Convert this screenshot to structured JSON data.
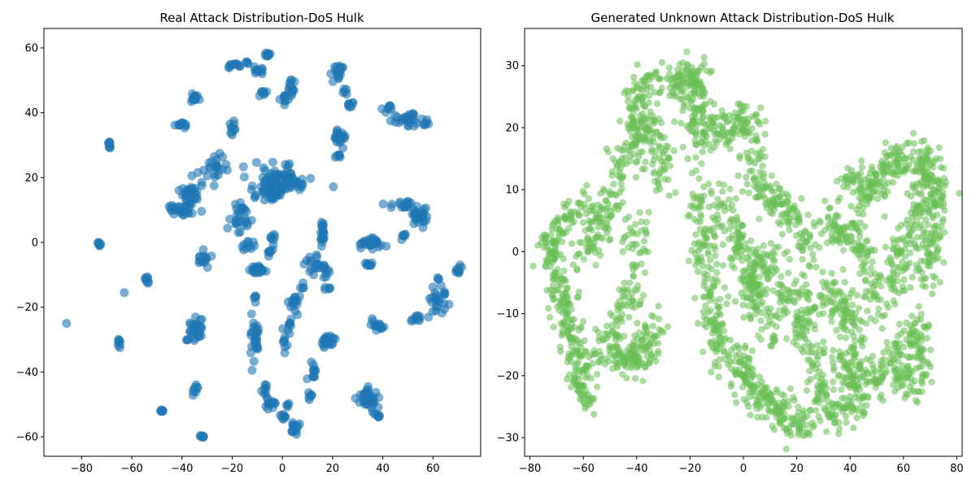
{
  "chart_data": [
    {
      "type": "scatter",
      "title": "Real Attack Distribution-DoS Hulk",
      "xlabel": "",
      "ylabel": "",
      "xlim": [
        -95,
        79
      ],
      "ylim": [
        -66,
        66
      ],
      "xticks": [
        -80,
        -60,
        -40,
        -20,
        0,
        20,
        40,
        60
      ],
      "yticks": [
        -60,
        -40,
        -20,
        0,
        20,
        40,
        60
      ],
      "grid": false,
      "color": "#1f77b4",
      "opacity": 0.6,
      "clusters": [
        {
          "cx": -73,
          "cy": -0.5,
          "rx": 0.6,
          "ry": 0.5,
          "n": 8
        },
        {
          "cx": -69,
          "cy": 30,
          "rx": 0.4,
          "ry": 1.2,
          "n": 8
        },
        {
          "cx": -86,
          "cy": -25,
          "rx": 0,
          "ry": 0,
          "n": 1
        },
        {
          "cx": -63,
          "cy": -15.5,
          "rx": 0,
          "ry": 0,
          "n": 1
        },
        {
          "cx": -65,
          "cy": -31,
          "rx": 0.5,
          "ry": 1.5,
          "n": 8
        },
        {
          "cx": -54,
          "cy": -11.5,
          "rx": 0.5,
          "ry": 1.5,
          "n": 8
        },
        {
          "cx": -48,
          "cy": -52,
          "rx": 0.5,
          "ry": 0.4,
          "n": 8
        },
        {
          "cx": -32,
          "cy": -60,
          "rx": 1.0,
          "ry": 0.4,
          "n": 8
        },
        {
          "cx": -35,
          "cy": 44.5,
          "rx": 1.2,
          "ry": 1.5,
          "n": 14
        },
        {
          "cx": -40,
          "cy": 36.5,
          "rx": 2,
          "ry": 0.8,
          "n": 12
        },
        {
          "cx": -37,
          "cy": 14,
          "rx": 4,
          "ry": 4,
          "n": 45
        },
        {
          "cx": -42,
          "cy": 10,
          "rx": 3,
          "ry": 2,
          "n": 20
        },
        {
          "cx": -31,
          "cy": -5,
          "rx": 2,
          "ry": 2.5,
          "n": 15
        },
        {
          "cx": -34,
          "cy": -27,
          "rx": 3,
          "ry": 3,
          "n": 28
        },
        {
          "cx": -35,
          "cy": -46,
          "rx": 1,
          "ry": 1.5,
          "n": 8
        },
        {
          "cx": -38,
          "cy": -30,
          "rx": 0.5,
          "ry": 0.5,
          "n": 3
        },
        {
          "cx": -20,
          "cy": 54.5,
          "rx": 3,
          "ry": 0.8,
          "n": 12
        },
        {
          "cx": -14,
          "cy": 55.5,
          "rx": 1,
          "ry": 0.5,
          "n": 4
        },
        {
          "cx": -20,
          "cy": 35,
          "rx": 1,
          "ry": 1.5,
          "n": 10
        },
        {
          "cx": -27,
          "cy": 23,
          "rx": 6,
          "ry": 3.5,
          "n": 24
        },
        {
          "cx": -17,
          "cy": 8,
          "rx": 4,
          "ry": 4,
          "n": 28
        },
        {
          "cx": -14,
          "cy": -1,
          "rx": 2,
          "ry": 1.5,
          "n": 10
        },
        {
          "cx": -10,
          "cy": -8.5,
          "rx": 3,
          "ry": 1.5,
          "n": 22
        },
        {
          "cx": -11,
          "cy": -17,
          "rx": 1,
          "ry": 1,
          "n": 5
        },
        {
          "cx": -11,
          "cy": -30,
          "rx": 1.5,
          "ry": 8,
          "n": 28
        },
        {
          "cx": -7,
          "cy": -45,
          "rx": 1,
          "ry": 2.5,
          "n": 8
        },
        {
          "cx": -5,
          "cy": -49.5,
          "rx": 2,
          "ry": 1.5,
          "n": 14
        },
        {
          "cx": -10,
          "cy": 53,
          "rx": 2,
          "ry": 1.5,
          "n": 10
        },
        {
          "cx": -6,
          "cy": 58,
          "rx": 1.2,
          "ry": 1,
          "n": 10
        },
        {
          "cx": -8,
          "cy": 46,
          "rx": 1.5,
          "ry": 1.5,
          "n": 7
        },
        {
          "cx": 1,
          "cy": 44,
          "rx": 2,
          "ry": 1.5,
          "n": 10
        },
        {
          "cx": 4,
          "cy": 48,
          "rx": 2,
          "ry": 3,
          "n": 14
        },
        {
          "cx": -2,
          "cy": 19,
          "rx": 10,
          "ry": 4,
          "n": 90
        },
        {
          "cx": -5,
          "cy": 15,
          "rx": 5,
          "ry": 2,
          "n": 30
        },
        {
          "cx": -4,
          "cy": 1.5,
          "rx": 1,
          "ry": 1.5,
          "n": 7
        },
        {
          "cx": -5,
          "cy": -3,
          "rx": 1,
          "ry": 1.5,
          "n": 7
        },
        {
          "cx": 5,
          "cy": -19,
          "rx": 2,
          "ry": 3,
          "n": 16
        },
        {
          "cx": 3,
          "cy": -25,
          "rx": 1,
          "ry": 1,
          "n": 6
        },
        {
          "cx": 1,
          "cy": -30,
          "rx": 1.5,
          "ry": 3,
          "n": 10
        },
        {
          "cx": 1,
          "cy": -54,
          "rx": 1.5,
          "ry": 1,
          "n": 8
        },
        {
          "cx": 5,
          "cy": -57,
          "rx": 2,
          "ry": 2.5,
          "n": 14
        },
        {
          "cx": 2,
          "cy": -49.5,
          "rx": 1,
          "ry": 1,
          "n": 4
        },
        {
          "cx": 8,
          "cy": -14,
          "rx": 0.8,
          "ry": 1,
          "n": 4
        },
        {
          "cx": 13,
          "cy": -7,
          "rx": 3,
          "ry": 3,
          "n": 18
        },
        {
          "cx": 16,
          "cy": 3,
          "rx": 0.8,
          "ry": 4,
          "n": 18
        },
        {
          "cx": 17,
          "cy": -9,
          "rx": 1.5,
          "ry": 5,
          "n": 12
        },
        {
          "cx": 19,
          "cy": -14,
          "rx": 0.5,
          "ry": 0.5,
          "n": 3
        },
        {
          "cx": 18,
          "cy": -30.5,
          "rx": 3,
          "ry": 1.5,
          "n": 28
        },
        {
          "cx": 12,
          "cy": -40,
          "rx": 1.5,
          "ry": 3,
          "n": 12
        },
        {
          "cx": 11,
          "cy": -47,
          "rx": 1,
          "ry": 1,
          "n": 6
        },
        {
          "cx": 22,
          "cy": 53,
          "rx": 2,
          "ry": 2,
          "n": 22
        },
        {
          "cx": 25,
          "cy": 46.5,
          "rx": 1,
          "ry": 1,
          "n": 5
        },
        {
          "cx": 27,
          "cy": 42.5,
          "rx": 1.5,
          "ry": 1,
          "n": 8
        },
        {
          "cx": 23,
          "cy": 32.5,
          "rx": 2,
          "ry": 2,
          "n": 20
        },
        {
          "cx": 22,
          "cy": 26.5,
          "rx": 1,
          "ry": 0.6,
          "n": 6
        },
        {
          "cx": 35,
          "cy": -0.5,
          "rx": 4,
          "ry": 1.5,
          "n": 26
        },
        {
          "cx": 34,
          "cy": -7,
          "rx": 1.5,
          "ry": 1,
          "n": 9
        },
        {
          "cx": 38,
          "cy": -25.5,
          "rx": 3,
          "ry": 1.5,
          "n": 18
        },
        {
          "cx": 35,
          "cy": -48,
          "rx": 4,
          "ry": 3,
          "n": 34
        },
        {
          "cx": 38,
          "cy": -53.5,
          "rx": 2,
          "ry": 1,
          "n": 8
        },
        {
          "cx": 42,
          "cy": 41.5,
          "rx": 1.5,
          "ry": 0.8,
          "n": 8
        },
        {
          "cx": 50,
          "cy": 38,
          "rx": 4,
          "ry": 2.5,
          "n": 30
        },
        {
          "cx": 57,
          "cy": 36.5,
          "rx": 1,
          "ry": 1,
          "n": 6
        },
        {
          "cx": 47,
          "cy": 12,
          "rx": 4,
          "ry": 1.5,
          "n": 16
        },
        {
          "cx": 55,
          "cy": 7.5,
          "rx": 3,
          "ry": 3,
          "n": 26
        },
        {
          "cx": 48.5,
          "cy": 2,
          "rx": 1,
          "ry": 1,
          "n": 6
        },
        {
          "cx": 54,
          "cy": -23.5,
          "rx": 2,
          "ry": 1,
          "n": 10
        },
        {
          "cx": 62,
          "cy": -19,
          "rx": 4,
          "ry": 4,
          "n": 26
        },
        {
          "cx": 70,
          "cy": -8.5,
          "rx": 1.2,
          "ry": 1.5,
          "n": 10
        },
        {
          "cx": 62,
          "cy": -11.5,
          "rx": 0.5,
          "ry": 0.5,
          "n": 3
        }
      ]
    },
    {
      "type": "scatter",
      "title": "Generated Unknown Attack Distribution-DoS Hulk",
      "xlabel": "",
      "ylabel": "",
      "xlim": [
        -82,
        82
      ],
      "ylim": [
        -33,
        36
      ],
      "xticks": [
        -80,
        -60,
        -40,
        -20,
        0,
        20,
        40,
        60,
        80
      ],
      "yticks": [
        -30,
        -20,
        -10,
        0,
        10,
        20,
        30
      ],
      "grid": false,
      "color": "#6abf56",
      "opacity": 0.55,
      "strokes": [
        {
          "n": 220,
          "spread": 1.6,
          "path": [
            [
              -73,
              2
            ],
            [
              -69,
              -6
            ],
            [
              -65,
              -13
            ],
            [
              -62,
              -20
            ],
            [
              -58,
              -24
            ]
          ]
        },
        {
          "n": 80,
          "spread": 1.4,
          "path": [
            [
              -73,
              0
            ],
            [
              -65,
              6
            ],
            [
              -57,
              8
            ]
          ]
        },
        {
          "n": 150,
          "spread": 1.5,
          "path": [
            [
              -62,
              -2
            ],
            [
              -55,
              2
            ],
            [
              -50,
              8
            ],
            [
              -46,
              14
            ],
            [
              -40,
              22
            ]
          ]
        },
        {
          "n": 130,
          "spread": 1.6,
          "path": [
            [
              -57,
              -18
            ],
            [
              -50,
              -14
            ],
            [
              -44,
              -10
            ],
            [
              -42,
              -3
            ],
            [
              -39,
              5
            ]
          ]
        },
        {
          "n": 130,
          "spread": 1.3,
          "path": [
            [
              -48,
              -17
            ],
            [
              -42,
              -17
            ],
            [
              -36,
              -17
            ],
            [
              -33,
              -12
            ]
          ]
        },
        {
          "n": 130,
          "spread": 1.6,
          "path": [
            [
              -44,
              20
            ],
            [
              -40,
              26
            ],
            [
              -33,
              28
            ],
            [
              -27,
              26
            ],
            [
              -20,
              28
            ],
            [
              -15,
              26
            ]
          ]
        },
        {
          "n": 100,
          "spread": 1.6,
          "path": [
            [
              -38,
              14
            ],
            [
              -36,
              22
            ],
            [
              -30,
              15
            ],
            [
              -28,
              10
            ]
          ]
        },
        {
          "n": 90,
          "spread": 1.5,
          "path": [
            [
              -23,
              30
            ],
            [
              -20,
              27
            ],
            [
              -18,
              21
            ],
            [
              -17,
              15
            ]
          ]
        },
        {
          "n": 180,
          "spread": 1.7,
          "path": [
            [
              -18,
              10
            ],
            [
              -16,
              3
            ],
            [
              -14,
              -3
            ],
            [
              -12,
              -10
            ],
            [
              -10,
              -15
            ],
            [
              -5,
              -18
            ]
          ]
        },
        {
          "n": 110,
          "spread": 1.5,
          "path": [
            [
              -16,
              20
            ],
            [
              -10,
              20
            ],
            [
              -5,
              20
            ],
            [
              0,
              21
            ],
            [
              7,
              19
            ]
          ]
        },
        {
          "n": 160,
          "spread": 1.6,
          "path": [
            [
              -8,
              9
            ],
            [
              -3,
              3
            ],
            [
              2,
              -2
            ],
            [
              7,
              -8
            ],
            [
              10,
              -14
            ]
          ]
        },
        {
          "n": 200,
          "spread": 1.7,
          "path": [
            [
              -2,
              -17
            ],
            [
              3,
              -22
            ],
            [
              10,
              -24
            ],
            [
              17,
              -27
            ],
            [
              24,
              -28
            ]
          ]
        },
        {
          "n": 160,
          "spread": 1.6,
          "path": [
            [
              2,
              19
            ],
            [
              5,
              13
            ],
            [
              8,
              8
            ],
            [
              14,
              8
            ],
            [
              17,
              6
            ],
            [
              22,
              2
            ],
            [
              25,
              -2
            ]
          ]
        },
        {
          "n": 120,
          "spread": 1.5,
          "path": [
            [
              2,
              -10
            ],
            [
              5,
              -3
            ],
            [
              10,
              -1
            ],
            [
              14,
              -5
            ],
            [
              18,
              -9
            ],
            [
              22,
              -13
            ]
          ]
        },
        {
          "n": 160,
          "spread": 1.6,
          "path": [
            [
              20,
              -6
            ],
            [
              24,
              -10
            ],
            [
              26,
              -16
            ],
            [
              28,
              -22
            ],
            [
              33,
              -25
            ],
            [
              40,
              -26
            ]
          ]
        },
        {
          "n": 140,
          "spread": 1.6,
          "path": [
            [
              30,
              5
            ],
            [
              36,
              2
            ],
            [
              40,
              4
            ],
            [
              44,
              1
            ],
            [
              48,
              -3
            ],
            [
              50,
              -10
            ]
          ]
        },
        {
          "n": 150,
          "spread": 1.6,
          "path": [
            [
              30,
              -9
            ],
            [
              35,
              -6
            ],
            [
              38,
              -10
            ],
            [
              42,
              -15
            ],
            [
              47,
              -20
            ],
            [
              52,
              -22
            ]
          ]
        },
        {
          "n": 160,
          "spread": 1.6,
          "path": [
            [
              40,
              12
            ],
            [
              45,
              10
            ],
            [
              50,
              11
            ],
            [
              55,
              14
            ],
            [
              60,
              15
            ]
          ]
        },
        {
          "n": 140,
          "spread": 1.6,
          "path": [
            [
              55,
              -6
            ],
            [
              58,
              -2
            ],
            [
              62,
              3
            ],
            [
              66,
              8
            ],
            [
              70,
              14
            ]
          ]
        },
        {
          "n": 160,
          "spread": 1.6,
          "path": [
            [
              64,
              16
            ],
            [
              70,
              14
            ],
            [
              73,
              10
            ],
            [
              72,
              4
            ],
            [
              70,
              -2
            ],
            [
              68,
              -5
            ]
          ]
        },
        {
          "n": 150,
          "spread": 1.6,
          "path": [
            [
              55,
              -18
            ],
            [
              60,
              -15
            ],
            [
              64,
              -12
            ],
            [
              67,
              -15
            ],
            [
              66,
              -21
            ],
            [
              58,
              -20
            ]
          ]
        },
        {
          "n": 70,
          "spread": 1.4,
          "path": [
            [
              45,
              -24
            ],
            [
              40,
              -20
            ],
            [
              36,
              -17
            ]
          ]
        }
      ]
    }
  ]
}
